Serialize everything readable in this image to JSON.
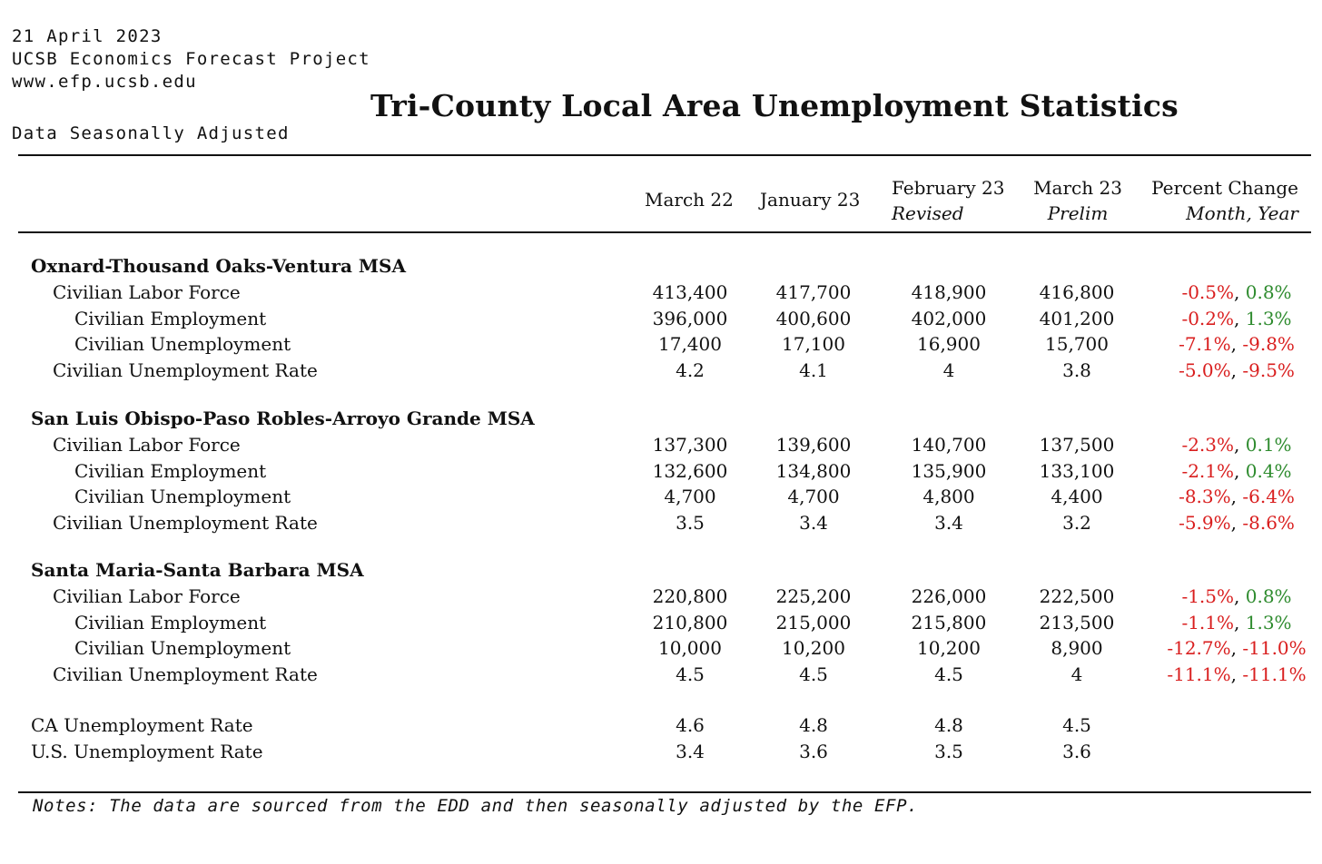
{
  "meta": {
    "date": "21 April 2023",
    "org": "UCSB Economics Forecast Project",
    "url": "www.efp.ucsb.edu",
    "adjustment": "Data Seasonally Adjusted"
  },
  "title": "Tri-County Local Area Unemployment Statistics",
  "columns": [
    {
      "label": "March 22",
      "sub": ""
    },
    {
      "label": "January 23",
      "sub": ""
    },
    {
      "label": "February 23",
      "sub": "Revised"
    },
    {
      "label": "March 23",
      "sub": "Prelim"
    },
    {
      "label": "Percent Change",
      "sub": "Month, Year"
    }
  ],
  "sections": [
    {
      "name": "Oxnard-Thousand Oaks-Ventura MSA",
      "rows": [
        {
          "label": "Civilian Labor Force",
          "indent": 1,
          "values": [
            "413,400",
            "417,700",
            "418,900",
            "416,800"
          ],
          "month_change": "-0.5%",
          "year_change": "0.8%"
        },
        {
          "label": "Civilian Employment",
          "indent": 2,
          "values": [
            "396,000",
            "400,600",
            "402,000",
            "401,200"
          ],
          "month_change": "-0.2%",
          "year_change": "1.3%"
        },
        {
          "label": "Civilian Unemployment",
          "indent": 2,
          "values": [
            "17,400",
            "17,100",
            "16,900",
            "15,700"
          ],
          "month_change": "-7.1%",
          "year_change": "-9.8%"
        },
        {
          "label": "Civilian Unemployment Rate",
          "indent": 1,
          "values": [
            "4.2",
            "4.1",
            "4",
            "3.8"
          ],
          "month_change": "-5.0%",
          "year_change": "-9.5%"
        }
      ]
    },
    {
      "name": "San Luis Obispo-Paso Robles-Arroyo Grande MSA",
      "rows": [
        {
          "label": "Civilian Labor Force",
          "indent": 1,
          "values": [
            "137,300",
            "139,600",
            "140,700",
            "137,500"
          ],
          "month_change": "-2.3%",
          "year_change": "0.1%"
        },
        {
          "label": "Civilian Employment",
          "indent": 2,
          "values": [
            "132,600",
            "134,800",
            "135,900",
            "133,100"
          ],
          "month_change": "-2.1%",
          "year_change": "0.4%"
        },
        {
          "label": "Civilian Unemployment",
          "indent": 2,
          "values": [
            "4,700",
            "4,700",
            "4,800",
            "4,400"
          ],
          "month_change": "-8.3%",
          "year_change": "-6.4%"
        },
        {
          "label": "Civilian Unemployment Rate",
          "indent": 1,
          "values": [
            "3.5",
            "3.4",
            "3.4",
            "3.2"
          ],
          "month_change": "-5.9%",
          "year_change": "-8.6%"
        }
      ]
    },
    {
      "name": "Santa Maria-Santa Barbara MSA",
      "rows": [
        {
          "label": "Civilian Labor Force",
          "indent": 1,
          "values": [
            "220,800",
            "225,200",
            "226,000",
            "222,500"
          ],
          "month_change": "-1.5%",
          "year_change": "0.8%"
        },
        {
          "label": "Civilian Employment",
          "indent": 2,
          "values": [
            "210,800",
            "215,000",
            "215,800",
            "213,500"
          ],
          "month_change": "-1.1%",
          "year_change": "1.3%"
        },
        {
          "label": "Civilian Unemployment",
          "indent": 2,
          "values": [
            "10,000",
            "10,200",
            "10,200",
            "8,900"
          ],
          "month_change": "-12.7%",
          "year_change": "-11.0%"
        },
        {
          "label": "Civilian Unemployment Rate",
          "indent": 1,
          "values": [
            "4.5",
            "4.5",
            "4.5",
            "4"
          ],
          "month_change": "-11.1%",
          "year_change": "-11.1%"
        }
      ]
    }
  ],
  "summary_rows": [
    {
      "label": "CA Unemployment Rate",
      "values": [
        "4.6",
        "4.8",
        "4.8",
        "4.5"
      ]
    },
    {
      "label": "U.S. Unemployment Rate",
      "values": [
        "3.4",
        "3.6",
        "3.5",
        "3.6"
      ]
    }
  ],
  "notes": "Notes: The data are sourced from the EDD and then seasonally adjusted by the EFP.",
  "colors": {
    "negative": "#d91e1e",
    "positive": "#2e8b2e",
    "text": "#111111"
  }
}
